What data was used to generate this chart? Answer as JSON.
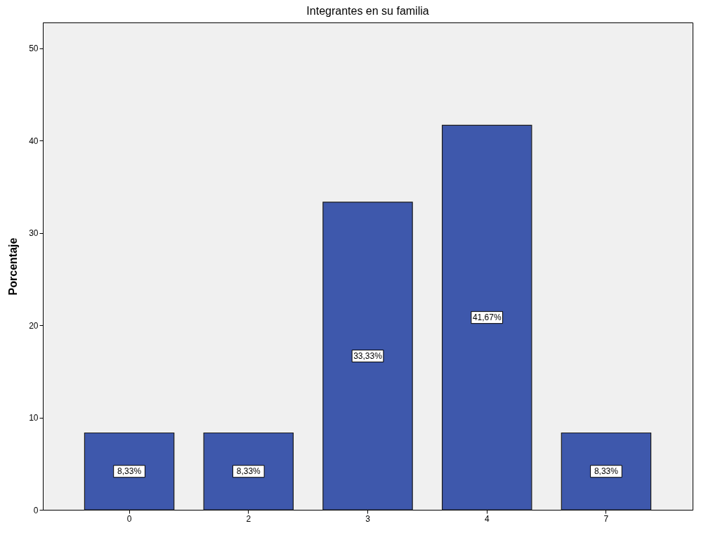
{
  "chart_data": {
    "type": "bar",
    "title": "Integrantes en su familia",
    "ylabel": "Porcentaje",
    "categories": [
      "0",
      "2",
      "3",
      "4",
      "7"
    ],
    "values": [
      8.33,
      8.33,
      33.33,
      41.67,
      8.33
    ],
    "value_labels": [
      "8,33%",
      "8,33%",
      "33,33%",
      "41,67%",
      "8,33%"
    ],
    "color": "#3e58ac",
    "ylim": [
      0,
      52.8
    ],
    "yticks": [
      0,
      10,
      20,
      30,
      40,
      50
    ],
    "grid": false
  }
}
